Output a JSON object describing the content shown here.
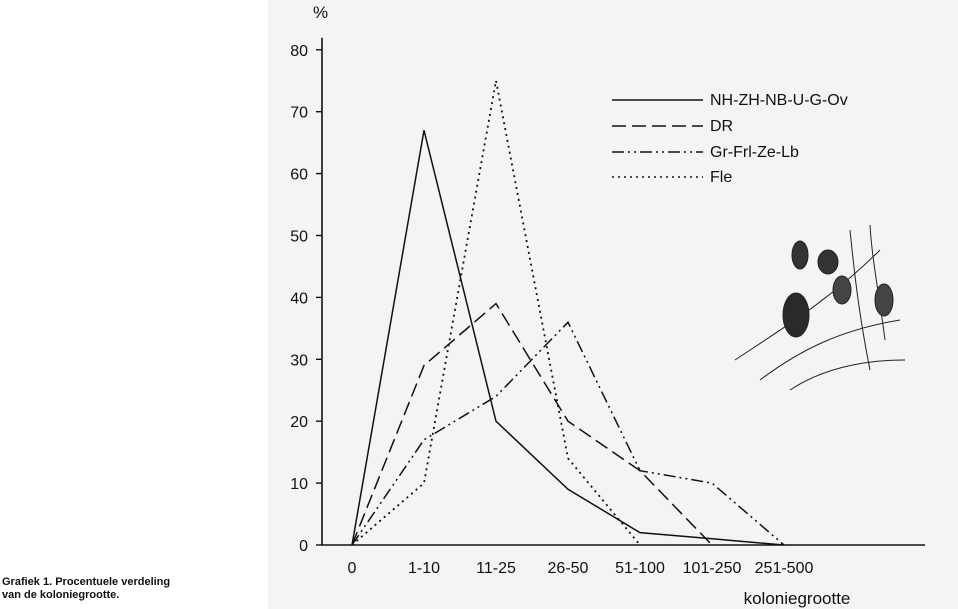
{
  "caption": {
    "line1": "Grafiek 1. Procentuele verdeling",
    "line2": "van de koloniegrootte."
  },
  "chart_data": {
    "type": "line",
    "ylabel": "%",
    "xlabel": "koloniegrootte",
    "categories": [
      "0",
      "1-10",
      "11-25",
      "26-50",
      "51-100",
      "101-250",
      "251-500"
    ],
    "ylim": [
      0,
      80
    ],
    "yticks": [
      0,
      10,
      20,
      30,
      40,
      50,
      60,
      70,
      80
    ],
    "grid": false,
    "legend_position": "top-right",
    "series": [
      {
        "name": "NH-ZH-NB-U-G-Ov",
        "style": "solid",
        "values": [
          0,
          67,
          20,
          9,
          2,
          1,
          0
        ]
      },
      {
        "name": "DR",
        "style": "dashed",
        "values": [
          0,
          29,
          39,
          20,
          12,
          0,
          null
        ]
      },
      {
        "name": "Gr-Frl-Ze-Lb",
        "style": "dash-dot-dot",
        "values": [
          0,
          17,
          24,
          36,
          12,
          10,
          0
        ]
      },
      {
        "name": "Fle",
        "style": "dotted",
        "values": [
          0,
          10,
          75,
          14,
          0,
          null,
          null
        ]
      }
    ],
    "line_color": "#111111"
  }
}
